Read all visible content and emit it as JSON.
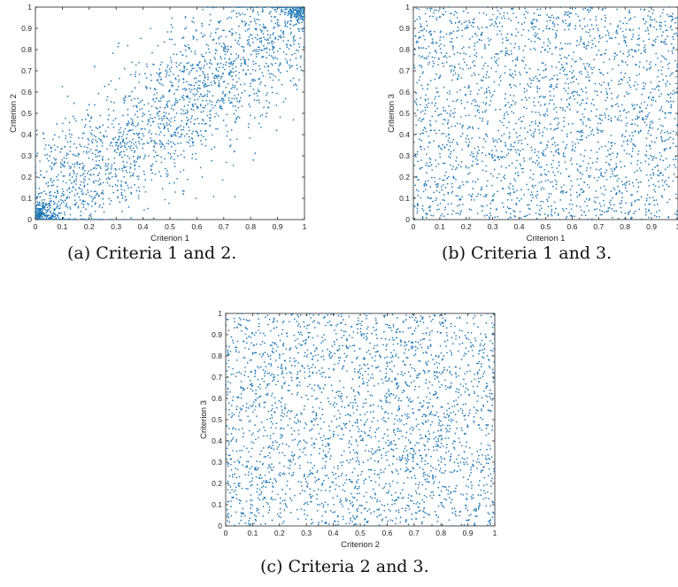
{
  "chart_data": [
    {
      "type": "scatter",
      "caption": "(a) Criteria 1 and 2.",
      "xlabel": "Criterion 1",
      "ylabel": "Criterion 2",
      "xlim": [
        0,
        1
      ],
      "ylim": [
        0,
        1
      ],
      "xticks": [
        "0",
        "0.1",
        "0.2",
        "0.3",
        "0.4",
        "0.5",
        "0.6",
        "0.7",
        "0.8",
        "0.9",
        "1"
      ],
      "yticks": [
        "0",
        "0.1",
        "0.2",
        "0.3",
        "0.4",
        "0.5",
        "0.6",
        "0.7",
        "0.8",
        "0.9",
        "1"
      ],
      "marker_color": "#1f77b4",
      "grid": false,
      "points": [
        [
          0.02,
          0.03
        ],
        [
          0.03,
          0.08
        ],
        [
          0.05,
          0.02
        ],
        [
          0.07,
          0.05
        ],
        [
          0.04,
          0.12
        ],
        [
          0.09,
          0.03
        ],
        [
          0.11,
          0.09
        ],
        [
          0.06,
          0.16
        ],
        [
          0.13,
          0.05
        ],
        [
          0.02,
          0.21
        ],
        [
          0.15,
          0.14
        ],
        [
          0.18,
          0.07
        ],
        [
          0.1,
          0.26
        ],
        [
          0.2,
          0.19
        ],
        [
          0.23,
          0.12
        ],
        [
          0.16,
          0.31
        ],
        [
          0.25,
          0.28
        ],
        [
          0.28,
          0.22
        ],
        [
          0.21,
          0.4
        ],
        [
          0.3,
          0.35
        ],
        [
          0.32,
          0.18
        ],
        [
          0.27,
          0.47
        ],
        [
          0.35,
          0.42
        ],
        [
          0.38,
          0.29
        ],
        [
          0.33,
          0.55
        ],
        [
          0.4,
          0.5
        ],
        [
          0.42,
          0.36
        ],
        [
          0.37,
          0.62
        ],
        [
          0.45,
          0.57
        ],
        [
          0.48,
          0.44
        ],
        [
          0.43,
          0.68
        ],
        [
          0.5,
          0.61
        ],
        [
          0.52,
          0.4
        ],
        [
          0.47,
          0.74
        ],
        [
          0.55,
          0.66
        ],
        [
          0.58,
          0.52
        ],
        [
          0.53,
          0.3
        ],
        [
          0.6,
          0.7
        ],
        [
          0.62,
          0.58
        ],
        [
          0.57,
          0.81
        ],
        [
          0.65,
          0.75
        ],
        [
          0.68,
          0.63
        ],
        [
          0.63,
          0.45
        ],
        [
          0.7,
          0.8
        ],
        [
          0.72,
          0.69
        ],
        [
          0.67,
          0.88
        ],
        [
          0.75,
          0.83
        ],
        [
          0.78,
          0.74
        ],
        [
          0.73,
          0.55
        ],
        [
          0.8,
          0.87
        ],
        [
          0.82,
          0.79
        ],
        [
          0.77,
          0.93
        ],
        [
          0.85,
          0.9
        ],
        [
          0.88,
          0.84
        ],
        [
          0.83,
          0.66
        ],
        [
          0.9,
          0.94
        ],
        [
          0.92,
          0.88
        ],
        [
          0.87,
          0.97
        ],
        [
          0.95,
          0.96
        ],
        [
          0.97,
          0.92
        ],
        [
          0.93,
          0.99
        ],
        [
          0.98,
          0.98
        ],
        [
          0.96,
          0.85
        ],
        [
          0.99,
          0.95
        ],
        [
          0.91,
          0.73
        ],
        [
          0.05,
          0.35
        ],
        [
          0.12,
          0.58
        ],
        [
          0.22,
          0.72
        ],
        [
          0.31,
          0.83
        ],
        [
          0.08,
          0.45
        ],
        [
          0.62,
          0.2
        ],
        [
          0.74,
          0.32
        ],
        [
          0.86,
          0.5
        ],
        [
          0.55,
          0.12
        ],
        [
          0.81,
          0.28
        ]
      ]
    },
    {
      "type": "scatter",
      "caption": "(b) Criteria 1 and 3.",
      "xlabel": "Criterion 1",
      "ylabel": "Criterion 3",
      "xlim": [
        0,
        1
      ],
      "ylim": [
        0,
        1
      ],
      "xticks": [
        "0",
        "0.1",
        "0.2",
        "0.3",
        "0.4",
        "0.5",
        "0.6",
        "0.7",
        "0.8",
        "0.9",
        "1"
      ],
      "yticks": [
        "0",
        "0.1",
        "0.2",
        "0.3",
        "0.4",
        "0.5",
        "0.6",
        "0.7",
        "0.8",
        "0.9",
        "1"
      ],
      "marker_color": "#1f77b4",
      "grid": false,
      "points": [
        [
          0.03,
          0.91
        ],
        [
          0.08,
          0.42
        ],
        [
          0.12,
          0.77
        ],
        [
          0.17,
          0.15
        ],
        [
          0.21,
          0.63
        ],
        [
          0.26,
          0.88
        ],
        [
          0.3,
          0.29
        ],
        [
          0.35,
          0.54
        ],
        [
          0.39,
          0.07
        ],
        [
          0.44,
          0.71
        ],
        [
          0.48,
          0.36
        ],
        [
          0.53,
          0.95
        ],
        [
          0.57,
          0.48
        ],
        [
          0.62,
          0.19
        ],
        [
          0.66,
          0.82
        ],
        [
          0.71,
          0.6
        ],
        [
          0.75,
          0.05
        ],
        [
          0.8,
          0.39
        ],
        [
          0.84,
          0.73
        ],
        [
          0.89,
          0.26
        ],
        [
          0.93,
          0.58
        ],
        [
          0.98,
          0.86
        ],
        [
          0.05,
          0.22
        ],
        [
          0.1,
          0.67
        ],
        [
          0.15,
          0.5
        ],
        [
          0.19,
          0.98
        ],
        [
          0.24,
          0.11
        ],
        [
          0.28,
          0.45
        ],
        [
          0.33,
          0.79
        ],
        [
          0.37,
          0.33
        ],
        [
          0.42,
          0.6
        ],
        [
          0.46,
          0.16
        ],
        [
          0.51,
          0.85
        ],
        [
          0.55,
          0.27
        ],
        [
          0.6,
          0.69
        ],
        [
          0.64,
          0.41
        ],
        [
          0.69,
          0.94
        ],
        [
          0.73,
          0.52
        ],
        [
          0.78,
          0.13
        ],
        [
          0.82,
          0.89
        ],
        [
          0.87,
          0.47
        ],
        [
          0.91,
          0.09
        ],
        [
          0.96,
          0.65
        ],
        [
          0.01,
          0.55
        ],
        [
          0.14,
          0.31
        ],
        [
          0.29,
          0.03
        ],
        [
          0.41,
          0.92
        ],
        [
          0.58,
          0.76
        ],
        [
          0.76,
          0.24
        ],
        [
          0.95,
          0.37
        ]
      ]
    },
    {
      "type": "scatter",
      "caption": "(c) Criteria 2 and 3.",
      "xlabel": "Criterion 2",
      "ylabel": "Criterion 3",
      "xlim": [
        0,
        1
      ],
      "ylim": [
        0,
        1
      ],
      "xticks": [
        "0",
        "0.1",
        "0.2",
        "0.3",
        "0.4",
        "0.5",
        "0.6",
        "0.7",
        "0.8",
        "0.9",
        "1"
      ],
      "yticks": [
        "0",
        "0.1",
        "0.2",
        "0.3",
        "0.4",
        "0.5",
        "0.6",
        "0.7",
        "0.8",
        "0.9",
        "1"
      ],
      "marker_color": "#1f77b4",
      "grid": false,
      "points": [
        [
          0.04,
          0.84
        ],
        [
          0.09,
          0.27
        ],
        [
          0.13,
          0.61
        ],
        [
          0.18,
          0.93
        ],
        [
          0.22,
          0.12
        ],
        [
          0.27,
          0.49
        ],
        [
          0.31,
          0.74
        ],
        [
          0.36,
          0.2
        ],
        [
          0.4,
          0.57
        ],
        [
          0.45,
          0.88
        ],
        [
          0.49,
          0.34
        ],
        [
          0.54,
          0.06
        ],
        [
          0.58,
          0.69
        ],
        [
          0.63,
          0.43
        ],
        [
          0.67,
          0.97
        ],
        [
          0.72,
          0.15
        ],
        [
          0.76,
          0.53
        ],
        [
          0.81,
          0.8
        ],
        [
          0.85,
          0.3
        ],
        [
          0.9,
          0.64
        ],
        [
          0.94,
          0.08
        ],
        [
          0.99,
          0.45
        ],
        [
          0.02,
          0.4
        ],
        [
          0.07,
          0.71
        ],
        [
          0.11,
          0.03
        ],
        [
          0.16,
          0.37
        ],
        [
          0.2,
          0.79
        ],
        [
          0.25,
          0.24
        ],
        [
          0.29,
          0.96
        ],
        [
          0.34,
          0.6
        ],
        [
          0.38,
          0.1
        ],
        [
          0.43,
          0.46
        ],
        [
          0.47,
          0.77
        ],
        [
          0.52,
          0.22
        ],
        [
          0.56,
          0.9
        ],
        [
          0.61,
          0.58
        ],
        [
          0.65,
          0.04
        ],
        [
          0.7,
          0.35
        ],
        [
          0.74,
          0.72
        ],
        [
          0.79,
          0.18
        ],
        [
          0.83,
          0.52
        ],
        [
          0.88,
          0.86
        ],
        [
          0.92,
          0.28
        ],
        [
          0.97,
          0.67
        ],
        [
          0.06,
          0.55
        ],
        [
          0.24,
          0.13
        ],
        [
          0.42,
          0.99
        ],
        [
          0.6,
          0.31
        ],
        [
          0.78,
          0.62
        ],
        [
          0.96,
          0.19
        ]
      ]
    }
  ]
}
